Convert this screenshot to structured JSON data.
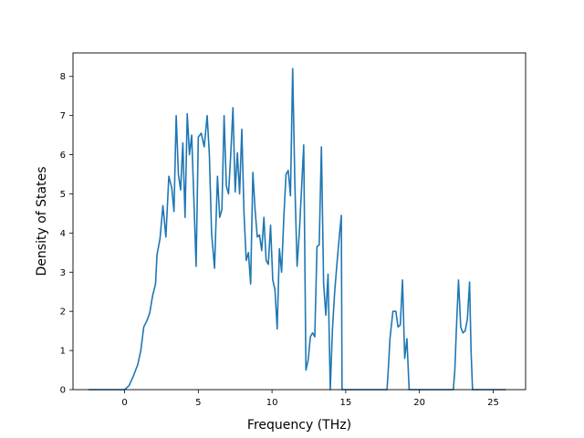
{
  "chart_data": {
    "type": "line",
    "title": "",
    "xlabel": "Frequency (THz)",
    "ylabel": "Density of States",
    "xlim": [
      -3.5,
      27.2
    ],
    "ylim": [
      0,
      8.6
    ],
    "xticks": [
      0,
      5,
      10,
      15,
      20,
      25
    ],
    "yticks": [
      0,
      1,
      2,
      3,
      4,
      5,
      6,
      7,
      8
    ],
    "grid": false,
    "legend": "none",
    "colors": {
      "series": "#1f77b4"
    },
    "series": [
      {
        "x": [
          -2.4,
          0.0,
          0.3,
          0.6,
          0.9,
          1.1,
          1.3,
          1.5,
          1.7,
          1.9,
          2.1,
          2.2,
          2.4,
          2.6,
          2.8,
          3.0,
          3.2,
          3.35,
          3.5,
          3.65,
          3.8,
          3.95,
          4.1,
          4.25,
          4.4,
          4.55,
          4.7,
          4.85,
          5.0,
          5.2,
          5.4,
          5.6,
          5.75,
          5.9,
          6.1,
          6.3,
          6.45,
          6.6,
          6.75,
          6.9,
          7.05,
          7.2,
          7.35,
          7.5,
          7.65,
          7.8,
          7.95,
          8.1,
          8.25,
          8.4,
          8.55,
          8.7,
          8.85,
          9.0,
          9.15,
          9.3,
          9.45,
          9.6,
          9.75,
          9.9,
          10.05,
          10.2,
          10.35,
          10.5,
          10.65,
          10.8,
          10.95,
          11.1,
          11.25,
          11.4,
          11.55,
          11.7,
          11.85,
          12.0,
          12.15,
          12.3,
          12.45,
          12.6,
          12.75,
          12.9,
          13.05,
          13.2,
          13.35,
          13.5,
          13.65,
          13.8,
          13.95,
          14.1,
          14.25,
          14.4,
          14.55,
          14.7,
          14.75,
          17.8,
          17.9,
          18.0,
          18.2,
          18.4,
          18.55,
          18.7,
          18.85,
          19.0,
          19.15,
          19.3,
          19.4,
          22.3,
          22.4,
          22.5,
          22.65,
          22.8,
          22.95,
          23.1,
          23.25,
          23.4,
          23.5,
          23.6,
          25.8
        ],
        "values": [
          0,
          0,
          0.1,
          0.35,
          0.65,
          1.0,
          1.6,
          1.75,
          1.95,
          2.4,
          2.7,
          3.45,
          3.85,
          4.7,
          3.9,
          5.45,
          5.15,
          4.55,
          7.0,
          5.5,
          5.1,
          6.3,
          4.4,
          7.05,
          6.0,
          6.5,
          4.85,
          3.15,
          6.45,
          6.55,
          6.2,
          7.0,
          6.0,
          4.0,
          3.1,
          5.45,
          4.4,
          4.6,
          7.0,
          5.2,
          5.0,
          6.0,
          7.2,
          5.05,
          6.05,
          5.0,
          6.65,
          4.5,
          3.3,
          3.5,
          2.7,
          5.55,
          4.6,
          3.9,
          3.95,
          3.55,
          4.4,
          3.3,
          3.2,
          4.2,
          2.8,
          2.55,
          1.55,
          3.6,
          3.0,
          4.4,
          5.5,
          5.6,
          4.95,
          8.2,
          5.25,
          3.15,
          4.0,
          5.1,
          6.25,
          0.5,
          0.75,
          1.35,
          1.45,
          1.35,
          3.65,
          3.7,
          6.2,
          2.7,
          1.9,
          2.95,
          0.0,
          1.55,
          2.5,
          3.2,
          3.85,
          4.45,
          0.0,
          0.0,
          0.6,
          1.3,
          2.0,
          2.0,
          1.6,
          1.65,
          2.8,
          0.8,
          1.3,
          0.0,
          0.0,
          0.0,
          0.5,
          1.5,
          2.8,
          1.6,
          1.45,
          1.5,
          1.8,
          2.75,
          1.0,
          0.0,
          0.0
        ]
      }
    ]
  }
}
